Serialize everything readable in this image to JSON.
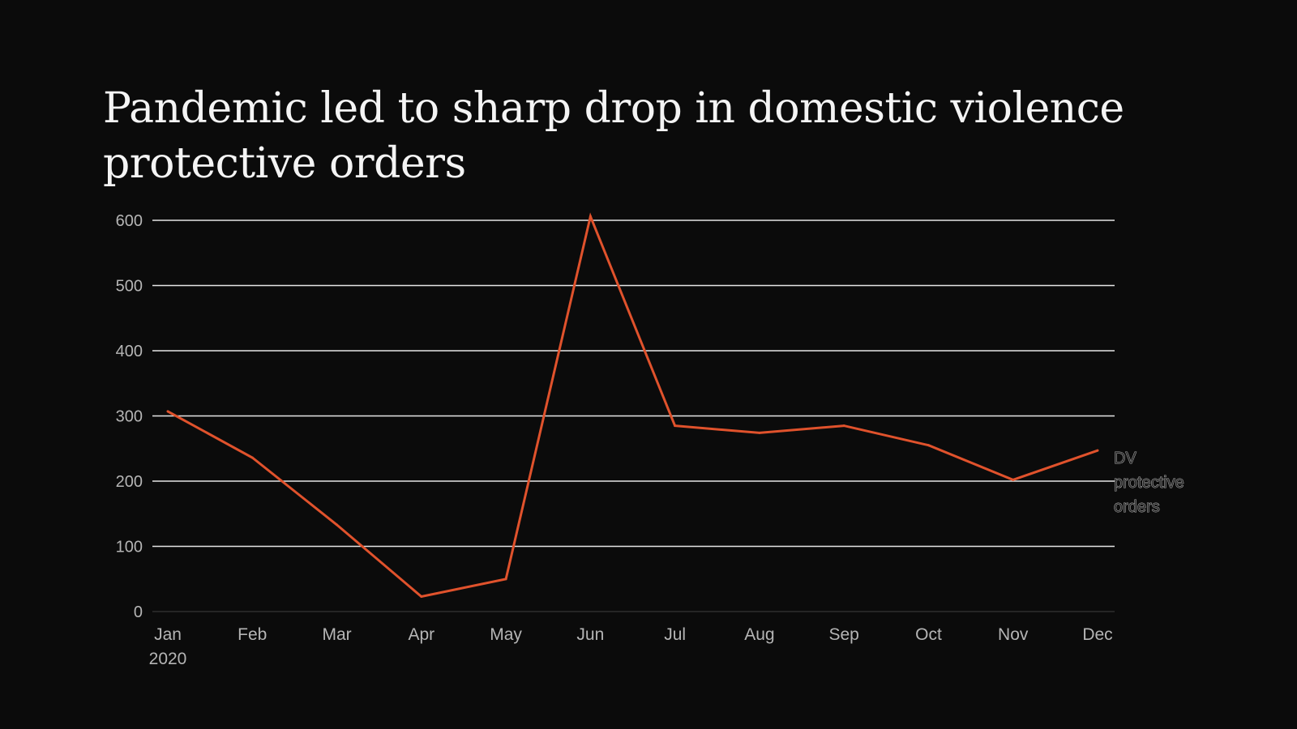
{
  "chart_data": {
    "type": "line",
    "title": "Pandemic led to sharp drop in domestic violence protective orders",
    "categories": [
      "Jan",
      "Feb",
      "Mar",
      "Apr",
      "May",
      "Jun",
      "Jul",
      "Aug",
      "Sep",
      "Oct",
      "Nov",
      "Dec"
    ],
    "x_sublabels": [
      "2020",
      "",
      "",
      "",
      "",
      "",
      "",
      "",
      "",
      "",
      "",
      ""
    ],
    "series": [
      {
        "name": "DV protective orders",
        "label_lines": [
          "DV",
          "protective",
          "orders"
        ],
        "color": "#e0522c",
        "values": [
          307,
          236,
          133,
          23,
          50,
          606,
          285,
          274,
          285,
          255,
          202,
          247
        ]
      }
    ],
    "y_ticks": [
      0,
      100,
      200,
      300,
      400,
      500,
      600
    ],
    "ylim": [
      0,
      600
    ],
    "grid": true,
    "xlabel": "",
    "ylabel": ""
  }
}
